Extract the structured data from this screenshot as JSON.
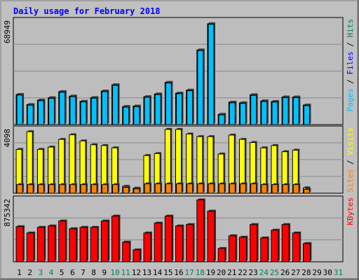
{
  "title": "Daily usage for February 2018",
  "colors": {
    "background": "#c0c0c0",
    "plot_background": "#bdbdbd",
    "title": "#0000ff",
    "hits": "#00805c",
    "files": "#0000ff",
    "pages": "#00c0ff",
    "visits": "#ffff00",
    "sites": "#ff8000",
    "kbytes": "#ff0000"
  },
  "chart_data": [
    {
      "type": "bar",
      "title": "Daily usage for February 2018",
      "panel": "top",
      "max_label": "68949",
      "ylim": [
        0,
        68949
      ],
      "legend": [
        "Pages",
        "Files",
        "Hits"
      ],
      "categories": [
        "1",
        "2",
        "3",
        "4",
        "5",
        "6",
        "7",
        "8",
        "9",
        "10",
        "11",
        "12",
        "13",
        "14",
        "15",
        "16",
        "17",
        "18",
        "19",
        "20",
        "21",
        "22",
        "23",
        "24",
        "25",
        "26",
        "27",
        "28",
        "29",
        "30",
        "31"
      ],
      "series": [
        {
          "name": "Hits",
          "values": [
            20200,
            13400,
            16400,
            18000,
            22100,
            19100,
            15600,
            18100,
            22500,
            26700,
            12100,
            12400,
            18700,
            20500,
            28300,
            21100,
            23100,
            50000,
            67600,
            6900,
            15000,
            14600,
            20000,
            15900,
            15500,
            18500,
            18500,
            13100,
            0,
            0,
            0
          ]
        },
        {
          "name": "Files",
          "values": [
            19800,
            13000,
            16000,
            17600,
            21700,
            18700,
            15200,
            17700,
            22100,
            26300,
            11700,
            12000,
            18300,
            20100,
            27900,
            20700,
            22700,
            49600,
            67200,
            6500,
            14600,
            14200,
            19600,
            15500,
            15100,
            18100,
            18100,
            12700,
            0,
            0,
            0
          ]
        },
        {
          "name": "Pages",
          "values": [
            0,
            0,
            0,
            0,
            0,
            0,
            0,
            0,
            0,
            0,
            0,
            0,
            0,
            0,
            0,
            0,
            0,
            0,
            0,
            0,
            0,
            0,
            0,
            0,
            0,
            0,
            0,
            0,
            0,
            0,
            0
          ]
        }
      ]
    },
    {
      "type": "bar",
      "panel": "middle",
      "max_label": "4098",
      "ylim": [
        0,
        4098
      ],
      "legend": [
        "Sites",
        "Visits"
      ],
      "categories": [
        "1",
        "2",
        "3",
        "4",
        "5",
        "6",
        "7",
        "8",
        "9",
        "10",
        "11",
        "12",
        "13",
        "14",
        "15",
        "16",
        "17",
        "18",
        "19",
        "20",
        "21",
        "22",
        "23",
        "24",
        "25",
        "26",
        "27",
        "28",
        "29",
        "30",
        "31"
      ],
      "series": [
        {
          "name": "Visits",
          "values": [
            2850,
            4000,
            2850,
            3000,
            3500,
            3800,
            3400,
            3150,
            3100,
            2950,
            450,
            330,
            2450,
            2580,
            4150,
            4150,
            3850,
            3680,
            3680,
            2550,
            3780,
            3500,
            3300,
            2950,
            3100,
            2700,
            2800,
            350,
            0,
            0,
            0
          ]
        },
        {
          "name": "Sites",
          "values": [
            560,
            560,
            560,
            560,
            560,
            560,
            560,
            560,
            560,
            560,
            380,
            280,
            610,
            610,
            610,
            610,
            610,
            610,
            610,
            610,
            610,
            610,
            610,
            560,
            560,
            560,
            560,
            250,
            0,
            0,
            0
          ]
        }
      ]
    },
    {
      "type": "bar",
      "panel": "bottom",
      "max_label": "875342",
      "ylim": [
        0,
        875342
      ],
      "legend": [
        "KBytes"
      ],
      "categories": [
        "1",
        "2",
        "3",
        "4",
        "5",
        "6",
        "7",
        "8",
        "9",
        "10",
        "11",
        "12",
        "13",
        "14",
        "15",
        "16",
        "17",
        "18",
        "19",
        "20",
        "21",
        "22",
        "23",
        "24",
        "25",
        "26",
        "27",
        "28",
        "29",
        "30",
        "31"
      ],
      "series": [
        {
          "name": "KBytes",
          "values": [
            500000,
            410000,
            490000,
            510000,
            580000,
            470000,
            490000,
            490000,
            580000,
            650000,
            280000,
            170000,
            410000,
            550000,
            650000,
            510000,
            530000,
            880000,
            720000,
            190000,
            370000,
            350000,
            530000,
            340000,
            450000,
            530000,
            410000,
            260000,
            0,
            0,
            0
          ]
        }
      ]
    }
  ],
  "x_labels": [
    {
      "text": "1",
      "color": "#000000"
    },
    {
      "text": "2",
      "color": "#000000"
    },
    {
      "text": "3",
      "color": "#00805c"
    },
    {
      "text": "4",
      "color": "#00805c"
    },
    {
      "text": "5",
      "color": "#000000"
    },
    {
      "text": "6",
      "color": "#000000"
    },
    {
      "text": "7",
      "color": "#000000"
    },
    {
      "text": "8",
      "color": "#000000"
    },
    {
      "text": "9",
      "color": "#000000"
    },
    {
      "text": "10",
      "color": "#00805c"
    },
    {
      "text": "11",
      "color": "#00805c"
    },
    {
      "text": "12",
      "color": "#000000"
    },
    {
      "text": "13",
      "color": "#000000"
    },
    {
      "text": "14",
      "color": "#000000"
    },
    {
      "text": "15",
      "color": "#000000"
    },
    {
      "text": "16",
      "color": "#000000"
    },
    {
      "text": "17",
      "color": "#00805c"
    },
    {
      "text": "18",
      "color": "#00805c"
    },
    {
      "text": "19",
      "color": "#000000"
    },
    {
      "text": "20",
      "color": "#000000"
    },
    {
      "text": "21",
      "color": "#000000"
    },
    {
      "text": "22",
      "color": "#000000"
    },
    {
      "text": "23",
      "color": "#000000"
    },
    {
      "text": "24",
      "color": "#00805c"
    },
    {
      "text": "25",
      "color": "#00805c"
    },
    {
      "text": "26",
      "color": "#000000"
    },
    {
      "text": "27",
      "color": "#000000"
    },
    {
      "text": "28",
      "color": "#000000"
    },
    {
      "text": "29",
      "color": "#000000"
    },
    {
      "text": "30",
      "color": "#000000"
    },
    {
      "text": "31",
      "color": "#00805c"
    }
  ],
  "side_labels": {
    "top": [
      {
        "text": "Pages",
        "color": "#00c0ff"
      },
      {
        "text": " / ",
        "color": "#000000"
      },
      {
        "text": "Files",
        "color": "#0000ff"
      },
      {
        "text": " / ",
        "color": "#000000"
      },
      {
        "text": "Hits",
        "color": "#00805c"
      }
    ],
    "middle": [
      {
        "text": "Sites",
        "color": "#ff8000"
      },
      {
        "text": " / ",
        "color": "#000000"
      },
      {
        "text": "Visits",
        "color": "#ffff00"
      }
    ],
    "bottom": [
      {
        "text": "KBytes",
        "color": "#ff0000"
      }
    ]
  }
}
